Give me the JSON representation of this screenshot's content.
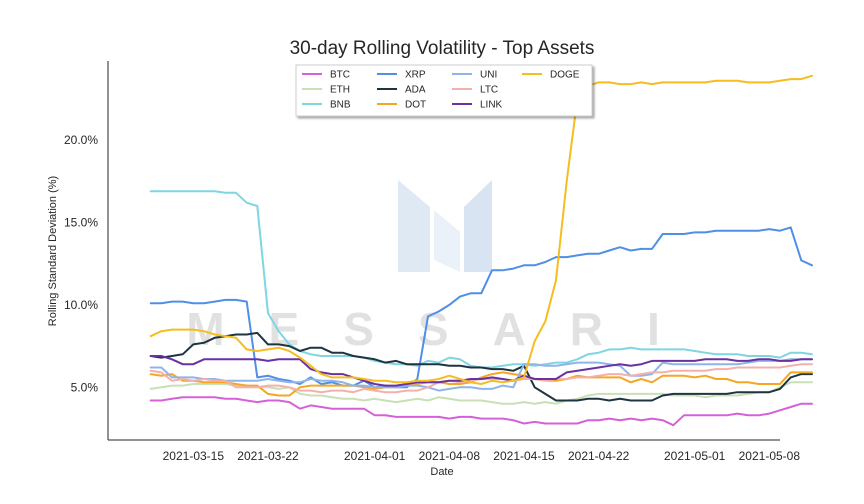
{
  "chart_data": {
    "type": "line",
    "title": "30-day Rolling Volatility - Top Assets",
    "xlabel": "Date",
    "ylabel": "Rolling Standard Deviation (%)",
    "x_start": "2021-03-11",
    "x_end": "2021-05-07",
    "xlim": [
      "2021-03-07",
      "2021-05-09"
    ],
    "ylim": [
      1.8,
      24.8
    ],
    "x_ticks": [
      "2021-03-15",
      "2021-03-22",
      "2021-04-01",
      "2021-04-08",
      "2021-04-15",
      "2021-04-22",
      "2021-05-01",
      "2021-05-08"
    ],
    "y_ticks": [
      {
        "value": 5,
        "label": "5.0%"
      },
      {
        "value": 10,
        "label": "10.0%"
      },
      {
        "value": 15,
        "label": "15.0%"
      },
      {
        "value": 20,
        "label": "20.0%"
      }
    ],
    "legend_position": "top-center",
    "watermark": "MESSARI",
    "series": [
      {
        "name": "BTC",
        "color": "#d660d8",
        "values": [
          4.2,
          4.2,
          4.3,
          4.4,
          4.4,
          4.4,
          4.4,
          4.3,
          4.3,
          4.2,
          4.1,
          4.2,
          4.2,
          4.1,
          3.7,
          3.9,
          3.8,
          3.7,
          3.7,
          3.7,
          3.7,
          3.3,
          3.3,
          3.2,
          3.2,
          3.2,
          3.2,
          3.2,
          3.1,
          3.2,
          3.2,
          3.1,
          3.1,
          3.1,
          3.0,
          2.8,
          2.9,
          2.8,
          2.8,
          2.8,
          2.8,
          3.0,
          3.0,
          3.1,
          3.0,
          3.1,
          3.0,
          3.1,
          3.0,
          2.7,
          3.3,
          3.3,
          3.3,
          3.3,
          3.3,
          3.4,
          3.3,
          3.3,
          3.4,
          3.6,
          3.8,
          4.0,
          4.0
        ]
      },
      {
        "name": "ETH",
        "color": "#c8e0b4",
        "values": [
          4.9,
          5.0,
          5.1,
          5.1,
          5.2,
          5.2,
          5.2,
          5.2,
          5.1,
          5.1,
          5.0,
          5.0,
          4.9,
          5.0,
          4.6,
          4.5,
          4.5,
          4.4,
          4.3,
          4.3,
          4.2,
          4.3,
          4.2,
          4.1,
          4.2,
          4.3,
          4.2,
          4.4,
          4.3,
          4.2,
          4.2,
          4.2,
          4.1,
          4.0,
          4.0,
          4.1,
          4.0,
          4.1,
          4.0,
          4.2,
          4.3,
          4.5,
          4.6,
          4.6,
          4.6,
          4.6,
          4.6,
          4.6,
          4.6,
          4.5,
          4.5,
          4.5,
          4.4,
          4.5,
          4.5,
          4.5,
          4.6,
          4.7,
          4.7,
          5.0,
          5.3,
          5.3,
          5.3
        ]
      },
      {
        "name": "BNB",
        "color": "#7fd5e2",
        "values": [
          16.9,
          16.9,
          16.9,
          16.9,
          16.9,
          16.9,
          16.9,
          16.8,
          16.8,
          16.2,
          16.0,
          9.5,
          8.4,
          7.6,
          7.2,
          7.0,
          6.9,
          6.9,
          6.9,
          6.9,
          6.8,
          6.6,
          6.5,
          6.4,
          6.4,
          6.3,
          6.6,
          6.5,
          6.8,
          6.7,
          6.3,
          6.2,
          6.2,
          6.3,
          6.4,
          6.4,
          6.3,
          6.4,
          6.5,
          6.5,
          6.7,
          7.0,
          7.1,
          7.3,
          7.3,
          7.4,
          7.3,
          7.3,
          7.3,
          7.3,
          7.3,
          7.2,
          7.1,
          7.0,
          7.0,
          7.0,
          6.9,
          6.9,
          6.9,
          6.8,
          7.1,
          7.1,
          7.0
        ]
      },
      {
        "name": "XRP",
        "color": "#4f8fe8",
        "values": [
          10.1,
          10.1,
          10.2,
          10.2,
          10.1,
          10.1,
          10.2,
          10.3,
          10.3,
          10.2,
          5.6,
          5.7,
          5.5,
          5.4,
          5.2,
          5.6,
          5.2,
          5.3,
          5.1,
          5.1,
          5.4,
          5.0,
          5.1,
          5.0,
          5.0,
          5.5,
          9.3,
          9.6,
          10.0,
          10.5,
          10.7,
          10.7,
          12.1,
          12.1,
          12.2,
          12.4,
          12.4,
          12.6,
          12.9,
          12.9,
          13.0,
          13.1,
          13.1,
          13.3,
          13.5,
          13.3,
          13.4,
          13.4,
          14.3,
          14.3,
          14.3,
          14.4,
          14.4,
          14.5,
          14.5,
          14.5,
          14.5,
          14.5,
          14.6,
          14.5,
          14.7,
          12.7,
          12.4
        ]
      },
      {
        "name": "ADA",
        "color": "#1e3440",
        "values": [
          6.9,
          6.8,
          6.9,
          7.0,
          7.6,
          7.7,
          8.0,
          8.1,
          8.2,
          8.2,
          8.3,
          7.6,
          7.6,
          7.5,
          7.2,
          7.4,
          7.4,
          7.1,
          7.1,
          6.9,
          6.8,
          6.7,
          6.5,
          6.6,
          6.4,
          6.4,
          6.4,
          6.4,
          6.3,
          6.3,
          6.2,
          6.2,
          6.1,
          6.1,
          6.0,
          6.3,
          5.0,
          4.6,
          4.2,
          4.2,
          4.2,
          4.3,
          4.3,
          4.2,
          4.3,
          4.2,
          4.2,
          4.2,
          4.5,
          4.6,
          4.6,
          4.6,
          4.6,
          4.6,
          4.6,
          4.7,
          4.7,
          4.7,
          4.7,
          4.9,
          5.6,
          5.8,
          5.8
        ]
      },
      {
        "name": "DOT",
        "color": "#f5a623",
        "values": [
          5.8,
          5.7,
          5.8,
          5.4,
          5.4,
          5.3,
          5.3,
          5.3,
          5.2,
          5.1,
          5.1,
          4.6,
          4.5,
          4.5,
          5.0,
          5.1,
          5.1,
          5.1,
          5.1,
          5.1,
          5.0,
          4.9,
          5.0,
          5.0,
          5.1,
          5.2,
          5.3,
          5.3,
          5.2,
          5.2,
          5.3,
          5.6,
          5.8,
          5.9,
          5.8,
          5.7,
          5.5,
          5.4,
          5.4,
          5.5,
          5.7,
          5.6,
          5.6,
          5.6,
          5.6,
          5.3,
          5.5,
          5.3,
          5.7,
          5.7,
          5.7,
          5.6,
          5.7,
          5.5,
          5.5,
          5.3,
          5.3,
          5.2,
          5.2,
          5.2,
          5.9,
          5.9,
          5.9
        ]
      },
      {
        "name": "UNI",
        "color": "#8fb4ea",
        "values": [
          6.2,
          6.2,
          5.6,
          5.6,
          5.6,
          5.5,
          5.5,
          5.4,
          5.4,
          5.4,
          5.4,
          5.5,
          5.4,
          5.3,
          5.3,
          5.5,
          5.4,
          5.4,
          5.3,
          5.1,
          5.1,
          5.0,
          5.0,
          5.0,
          5.1,
          5.1,
          5.0,
          4.8,
          4.9,
          5.0,
          5.0,
          4.9,
          4.9,
          5.1,
          5.0,
          6.4,
          6.4,
          6.3,
          6.3,
          6.4,
          6.5,
          6.5,
          6.5,
          6.4,
          6.3,
          5.7,
          5.7,
          5.8,
          6.5,
          6.4,
          6.4,
          6.4,
          6.4,
          6.4,
          6.4,
          6.4,
          6.5,
          6.6,
          6.6,
          6.6,
          6.7,
          6.7,
          6.7
        ]
      },
      {
        "name": "LTC",
        "color": "#f4b0ab",
        "values": [
          6.0,
          5.9,
          5.4,
          5.5,
          5.4,
          5.5,
          5.4,
          5.4,
          5.0,
          5.0,
          5.0,
          5.1,
          5.1,
          5.0,
          4.8,
          4.8,
          4.7,
          4.8,
          4.8,
          4.7,
          4.9,
          4.8,
          4.7,
          4.7,
          4.8,
          4.8,
          5.0,
          5.3,
          5.4,
          5.3,
          5.4,
          5.5,
          5.5,
          5.5,
          5.4,
          5.5,
          5.5,
          5.4,
          5.5,
          5.5,
          5.6,
          5.6,
          5.7,
          5.8,
          5.8,
          5.7,
          5.8,
          5.9,
          5.9,
          6.0,
          6.0,
          6.0,
          6.0,
          6.1,
          6.1,
          6.2,
          6.2,
          6.2,
          6.2,
          6.2,
          6.3,
          6.4,
          6.4
        ]
      },
      {
        "name": "LINK",
        "color": "#6a31a1",
        "values": [
          6.9,
          6.9,
          6.7,
          6.4,
          6.4,
          6.7,
          6.7,
          6.7,
          6.7,
          6.7,
          6.7,
          6.6,
          6.7,
          6.7,
          6.7,
          6.1,
          5.9,
          5.8,
          5.8,
          5.6,
          5.4,
          5.2,
          5.1,
          5.1,
          5.2,
          5.3,
          5.3,
          5.3,
          5.4,
          5.4,
          5.5,
          5.5,
          5.6,
          5.5,
          5.4,
          5.7,
          5.5,
          5.5,
          5.5,
          5.9,
          6.0,
          6.1,
          6.2,
          6.3,
          6.4,
          6.3,
          6.4,
          6.6,
          6.6,
          6.6,
          6.6,
          6.6,
          6.7,
          6.7,
          6.7,
          6.6,
          6.6,
          6.7,
          6.7,
          6.6,
          6.6,
          6.7,
          6.7
        ]
      },
      {
        "name": "DOGE",
        "color": "#f5bd1f",
        "values": [
          8.1,
          8.4,
          8.5,
          8.5,
          8.5,
          8.4,
          8.2,
          8.1,
          8.0,
          7.3,
          7.2,
          7.3,
          7.4,
          7.2,
          6.8,
          6.3,
          5.8,
          5.6,
          5.6,
          5.6,
          5.5,
          5.4,
          5.4,
          5.3,
          5.3,
          5.4,
          5.4,
          5.5,
          5.7,
          5.5,
          5.3,
          5.2,
          5.4,
          5.3,
          5.4,
          5.6,
          7.8,
          9.0,
          11.5,
          17.5,
          22.5,
          23.3,
          23.5,
          23.5,
          23.4,
          23.4,
          23.5,
          23.4,
          23.5,
          23.5,
          23.5,
          23.5,
          23.5,
          23.6,
          23.6,
          23.6,
          23.5,
          23.5,
          23.5,
          23.6,
          23.7,
          23.7,
          23.9
        ]
      }
    ]
  }
}
